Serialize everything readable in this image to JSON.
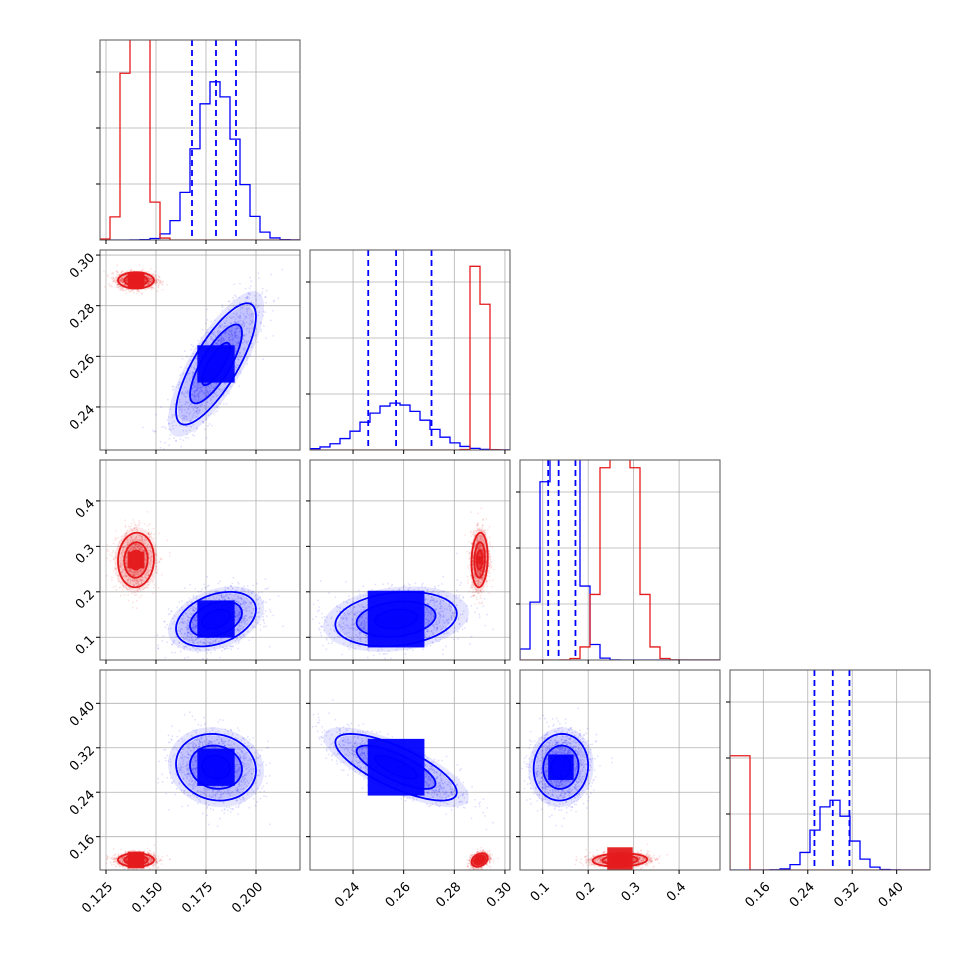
{
  "chart_data": {
    "type": "scatter",
    "title": "",
    "parameters": [
      "",
      "",
      "",
      ""
    ],
    "colors": {
      "red": "#e41a1c",
      "blue": "#0000ff",
      "grid": "#b0b0b0"
    },
    "grid": true,
    "axis_ranges": [
      [
        0.122,
        0.222
      ],
      [
        0.223,
        0.302
      ],
      [
        0.05,
        0.49
      ],
      [
        0.1,
        0.46
      ]
    ],
    "bottom_tick_labels": [
      [
        "0.125",
        "0.150",
        "0.175",
        "0.200"
      ],
      [
        "0.24",
        "0.26",
        "0.28",
        "0.30"
      ],
      [
        "0.1",
        "0.2",
        "0.3",
        "0.4"
      ],
      [
        "0.16",
        "0.24",
        "0.32",
        "0.40"
      ]
    ],
    "left_tick_labels": {
      "row1": [
        "0.24",
        "0.26",
        "0.28",
        "0.30"
      ],
      "row2": [
        "0.1",
        "0.2",
        "0.3",
        "0.4"
      ],
      "row3": [
        "0.16",
        "0.24",
        "0.32",
        "0.40"
      ]
    },
    "tick_values": [
      [
        0.125,
        0.15,
        0.175,
        0.2
      ],
      [
        0.24,
        0.26,
        0.28,
        0.3
      ],
      [
        0.1,
        0.2,
        0.3,
        0.4
      ],
      [
        0.16,
        0.24,
        0.32,
        0.4
      ]
    ],
    "series": [
      {
        "color": "#e41a1c",
        "means": [
          0.14,
          0.29,
          0.27,
          0.118
        ],
        "sigmas": [
          0.0045,
          0.0016,
          0.03,
          0.006
        ],
        "correlations": {
          "0-1": 0.0,
          "0-2": 0.05,
          "0-3": 0.0,
          "1-2": 0.1,
          "1-3": 0.3,
          "2-3": 0.1
        }
      },
      {
        "color": "#0000ff",
        "means": [
          0.18,
          0.257,
          0.14,
          0.285
        ],
        "sigmas": [
          0.01,
          0.012,
          0.03,
          0.03
        ],
        "correlations": {
          "0-1": 0.78,
          "0-2": 0.35,
          "0-3": -0.1,
          "1-2": 0.2,
          "1-3": -0.75,
          "2-3": 0.05
        },
        "quantiles": [
          [
            0.168,
            0.18,
            0.19
          ],
          [
            0.246,
            0.257,
            0.271
          ],
          [
            0.112,
            0.135,
            0.172
          ],
          [
            0.252,
            0.285,
            0.315
          ]
        ]
      }
    ]
  }
}
